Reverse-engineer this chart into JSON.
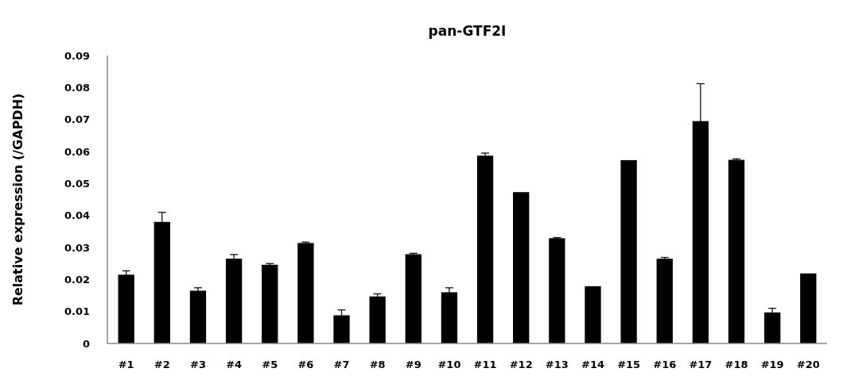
{
  "chart_data": {
    "type": "bar",
    "title": "pan-GTF2I",
    "ylabel": "Relative expression (/GAPDH)",
    "categories": [
      "#1",
      "#2",
      "#3",
      "#4",
      "#5",
      "#6",
      "#7",
      "#8",
      "#9",
      "#10",
      "#11",
      "#12",
      "#13",
      "#14",
      "#15",
      "#16",
      "#17",
      "#18",
      "#19",
      "#20"
    ],
    "values": [
      0.0215,
      0.038,
      0.0165,
      0.0265,
      0.0246,
      0.0314,
      0.0088,
      0.0147,
      0.0279,
      0.016,
      0.0587,
      0.0473,
      0.0329,
      0.0179,
      0.0573,
      0.0265,
      0.0695,
      0.0574,
      0.0097,
      0.0219
    ],
    "errors": [
      0.0012,
      0.003,
      0.0009,
      0.0013,
      0.0004,
      0.0003,
      0.0017,
      0.0008,
      0.0003,
      0.0014,
      0.0008,
      null,
      0.0002,
      null,
      null,
      0.0004,
      0.0117,
      0.0003,
      0.0013,
      null
    ],
    "color": "#000000",
    "ylim": [
      0,
      0.09
    ],
    "yticks": [
      0,
      0.01,
      0.02,
      0.03,
      0.04,
      0.05,
      0.06,
      0.07,
      0.08,
      0.09
    ],
    "grid": false
  }
}
